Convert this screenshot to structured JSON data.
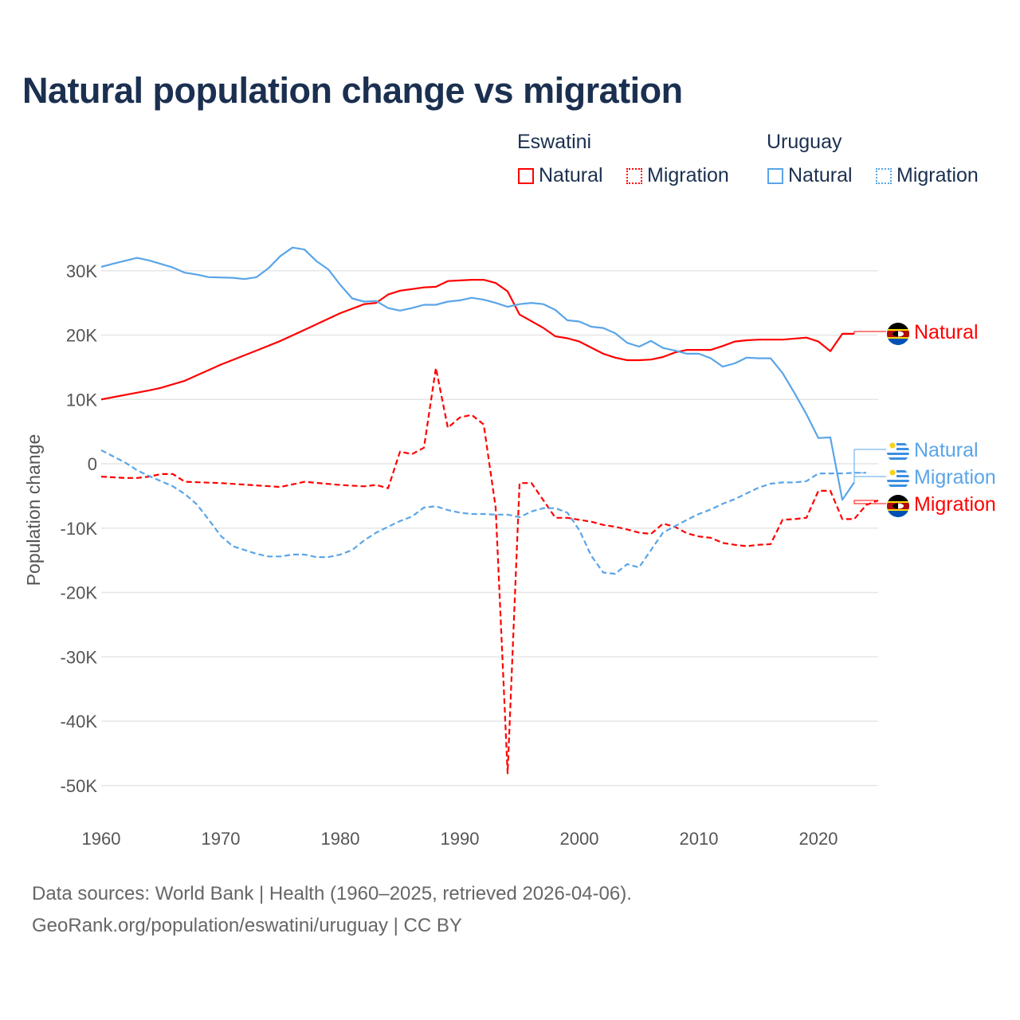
{
  "chart_data": {
    "type": "line",
    "title": "Natural population change vs migration",
    "xlabel": "",
    "ylabel": "Population change",
    "xlim": [
      1960,
      2025
    ],
    "ylim": [
      -50000,
      30000
    ],
    "x_ticks": [
      1960,
      1970,
      1980,
      1990,
      2000,
      2010,
      2020
    ],
    "x_tick_labels": [
      "1960",
      "1970",
      "1980",
      "1990",
      "2000",
      "2010",
      "2020"
    ],
    "y_ticks": [
      30000,
      20000,
      10000,
      0,
      -10000,
      -20000,
      -30000,
      -40000,
      -50000
    ],
    "y_tick_labels": [
      "30K",
      "20K",
      "10K",
      "0",
      "-10K",
      "-20K",
      "-30K",
      "-40K",
      "-50K"
    ],
    "grid": true,
    "legend_placement": "top-right",
    "legend_groups": [
      {
        "country": "Eswatini",
        "items": [
          "Natural",
          "Migration"
        ]
      },
      {
        "country": "Uruguay",
        "items": [
          "Natural",
          "Migration"
        ]
      }
    ],
    "series": [
      {
        "name": "Eswatini Natural",
        "label": "Natural",
        "color": "#ff0000",
        "dash": false,
        "x": [
          1960,
          1962,
          1964,
          1965,
          1967,
          1970,
          1973,
          1975,
          1977,
          1980,
          1982,
          1983,
          1984,
          1985,
          1987,
          1988,
          1989,
          1991,
          1992,
          1993,
          1994,
          1995,
          1997,
          1998,
          1999,
          2000,
          2002,
          2003,
          2004,
          2005,
          2006,
          2007,
          2008,
          2009,
          2011,
          2012,
          2013,
          2014,
          2015,
          2017,
          2019,
          2020,
          2021,
          2022,
          2023
        ],
        "values": [
          10000,
          10700,
          11400,
          11800,
          12900,
          15400,
          17600,
          19100,
          20800,
          23400,
          24800,
          25000,
          26300,
          26900,
          27400,
          27500,
          28400,
          28600,
          28600,
          28100,
          26800,
          23200,
          21100,
          19800,
          19500,
          19000,
          17100,
          16500,
          16100,
          16100,
          16200,
          16600,
          17300,
          17700,
          17700,
          18300,
          19000,
          19200,
          19300,
          19300,
          19600,
          19000,
          17500,
          20200,
          20200
        ]
      },
      {
        "name": "Eswatini Migration",
        "label": "Migration",
        "color": "#ff0000",
        "dash": true,
        "x": [
          1960,
          1962,
          1963,
          1964,
          1965,
          1966,
          1967,
          1970,
          1975,
          1977,
          1980,
          1982,
          1983,
          1984,
          1985,
          1986,
          1987,
          1988,
          1989,
          1990,
          1991,
          1992,
          1993,
          1994,
          1995,
          1996,
          1997,
          1998,
          1999,
          2000,
          2001,
          2002,
          2003,
          2004,
          2005,
          2006,
          2007,
          2008,
          2009,
          2010,
          2011,
          2012,
          2013,
          2014,
          2015,
          2016,
          2017,
          2018,
          2019,
          2020,
          2021,
          2022,
          2023,
          2024,
          2025
        ],
        "values": [
          -2000,
          -2200,
          -2200,
          -2000,
          -1600,
          -1600,
          -2800,
          -3000,
          -3600,
          -2800,
          -3300,
          -3500,
          -3300,
          -3800,
          1900,
          1500,
          2500,
          14900,
          5600,
          7200,
          7600,
          6100,
          -6800,
          -48100,
          -3000,
          -3000,
          -5700,
          -8400,
          -8400,
          -8700,
          -9000,
          -9500,
          -9800,
          -10200,
          -10700,
          -10900,
          -9300,
          -9800,
          -10800,
          -11300,
          -11500,
          -12300,
          -12600,
          -12800,
          -12600,
          -12500,
          -8700,
          -8600,
          -8400,
          -4200,
          -4200,
          -8600,
          -8600,
          -6400,
          -5700
        ]
      },
      {
        "name": "Uruguay Natural",
        "label": "Natural",
        "color": "#5aa5e8",
        "dash": false,
        "x": [
          1960,
          1961,
          1963,
          1964,
          1966,
          1967,
          1968,
          1969,
          1971,
          1972,
          1973,
          1974,
          1975,
          1976,
          1977,
          1978,
          1979,
          1980,
          1981,
          1982,
          1983,
          1984,
          1985,
          1986,
          1987,
          1988,
          1989,
          1990,
          1991,
          1992,
          1993,
          1994,
          1995,
          1996,
          1997,
          1998,
          1999,
          2000,
          2001,
          2002,
          2003,
          2004,
          2005,
          2006,
          2007,
          2008,
          2009,
          2010,
          2011,
          2012,
          2013,
          2014,
          2015,
          2016,
          2017,
          2018,
          2019,
          2020,
          2021,
          2022,
          2023
        ],
        "values": [
          30600,
          31100,
          32000,
          31600,
          30500,
          29700,
          29400,
          29000,
          28900,
          28700,
          29000,
          30400,
          32300,
          33600,
          33300,
          31500,
          30200,
          27800,
          25700,
          25200,
          25300,
          24200,
          23800,
          24200,
          24700,
          24700,
          25200,
          25400,
          25800,
          25500,
          25000,
          24400,
          24800,
          25000,
          24800,
          23900,
          22300,
          22100,
          21300,
          21100,
          20300,
          18800,
          18200,
          19100,
          18000,
          17600,
          17100,
          17100,
          16400,
          15100,
          15600,
          16500,
          16400,
          16400,
          14100,
          11000,
          7700,
          4000,
          4100,
          -5600,
          -2900
        ]
      },
      {
        "name": "Uruguay Migration",
        "label": "Migration",
        "color": "#5aa5e8",
        "dash": true,
        "x": [
          1960,
          1962,
          1963,
          1964,
          1966,
          1967,
          1968,
          1969,
          1970,
          1971,
          1972,
          1973,
          1974,
          1975,
          1976,
          1977,
          1978,
          1979,
          1980,
          1981,
          1982,
          1983,
          1984,
          1985,
          1986,
          1987,
          1988,
          1989,
          1990,
          1991,
          1992,
          1993,
          1994,
          1995,
          1996,
          1997,
          1998,
          1999,
          2000,
          2001,
          2002,
          2003,
          2004,
          2005,
          2006,
          2007,
          2008,
          2009,
          2010,
          2011,
          2012,
          2013,
          2014,
          2015,
          2016,
          2017,
          2018,
          2019,
          2020,
          2021,
          2022,
          2023,
          2024
        ],
        "values": [
          2100,
          200,
          -1000,
          -1900,
          -3500,
          -4700,
          -6300,
          -8700,
          -11200,
          -12800,
          -13400,
          -14000,
          -14400,
          -14400,
          -14100,
          -14100,
          -14500,
          -14500,
          -14100,
          -13400,
          -11900,
          -10700,
          -9800,
          -8900,
          -8200,
          -6800,
          -6600,
          -7200,
          -7600,
          -7800,
          -7800,
          -7900,
          -7900,
          -8300,
          -7400,
          -6900,
          -6900,
          -7600,
          -10300,
          -14300,
          -16900,
          -17100,
          -15600,
          -16100,
          -13400,
          -10700,
          -9700,
          -8700,
          -7800,
          -7100,
          -6200,
          -5500,
          -4600,
          -3700,
          -3100,
          -2900,
          -2900,
          -2700,
          -1500,
          -1500,
          -1500,
          -1400,
          -1400
        ]
      }
    ],
    "end_labels": [
      {
        "series": "Eswatini Natural",
        "text": "Natural",
        "flag": "eswatini-flag-icon"
      },
      {
        "series": "Uruguay Natural",
        "text": "Natural",
        "flag": "uruguay-flag-icon"
      },
      {
        "series": "Uruguay Migration",
        "text": "Migration",
        "flag": "uruguay-flag-icon"
      },
      {
        "series": "Eswatini Migration",
        "text": "Migration",
        "flag": "eswatini-flag-icon"
      }
    ]
  },
  "legend": {
    "eswatini": {
      "title": "Eswatini",
      "natural": "Natural",
      "migration": "Migration",
      "color": "#ff0000"
    },
    "uruguay": {
      "title": "Uruguay",
      "natural": "Natural",
      "migration": "Migration",
      "color": "#5aa5e8"
    }
  },
  "footer": {
    "line1": "Data sources: World Bank | Health (1960–2025, retrieved 2026-04-06).",
    "line2": "GeoRank.org/population/eswatini/uruguay | CC BY"
  }
}
